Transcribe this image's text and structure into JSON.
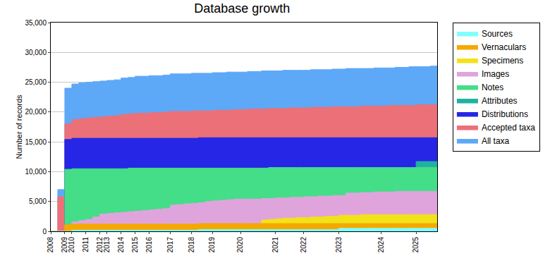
{
  "chart_data": {
    "type": "area",
    "title": "Database growth",
    "y_label": "Number of records",
    "stacked": false,
    "grid": true,
    "legend": "right",
    "ylim": [
      0,
      35000
    ],
    "yticks": [
      0,
      {
        "value": 5000,
        "label": "5,000"
      },
      {
        "value": 10000,
        "label": "10,000"
      },
      {
        "value": 15000,
        "label": "15,000"
      },
      {
        "value": 20000,
        "label": "20,000"
      },
      {
        "value": 25000,
        "label": "25,000"
      },
      {
        "value": 30000,
        "label": "30,000"
      },
      {
        "value": 35000,
        "label": "35,000"
      }
    ],
    "categories": [
      "2008",
      null,
      "2009",
      "2010",
      null,
      "2011",
      null,
      "2012",
      "2013",
      null,
      "2014",
      null,
      "2015",
      null,
      "2016",
      null,
      null,
      "2017",
      null,
      null,
      "2018",
      null,
      null,
      "2019",
      null,
      null,
      null,
      "2020",
      null,
      null,
      null,
      null,
      "2021",
      null,
      null,
      null,
      "2022",
      null,
      null,
      null,
      null,
      "2023",
      null,
      null,
      null,
      null,
      null,
      "2024",
      null,
      null,
      null,
      null,
      "2025",
      null,
      null,
      null
    ],
    "series": [
      {
        "name": "Sources",
        "color": "#80ffff",
        "values": [
          0,
          0,
          0,
          200,
          200,
          200,
          200,
          200,
          200,
          200,
          200,
          200,
          200,
          200,
          200,
          200,
          200,
          200,
          200,
          200,
          200,
          300,
          300,
          300,
          300,
          300,
          300,
          300,
          300,
          300,
          300,
          300,
          300,
          300,
          300,
          300,
          300,
          300,
          300,
          300,
          300,
          500,
          500,
          500,
          500,
          500,
          500,
          500,
          500,
          500,
          500,
          500,
          500,
          500,
          500,
          500
        ]
      },
      {
        "name": "Vernaculars",
        "color": "#f5a800",
        "values": [
          0,
          0,
          1100,
          1200,
          1200,
          1200,
          1200,
          1200,
          1200,
          1200,
          1200,
          1200,
          1200,
          1200,
          1200,
          1200,
          1200,
          1200,
          1200,
          1200,
          1200,
          1300,
          1300,
          1300,
          1300,
          1300,
          1300,
          1300,
          1300,
          1300,
          1300,
          1300,
          1300,
          1300,
          1300,
          1300,
          1300,
          1300,
          1300,
          1300,
          1300,
          1300,
          1300,
          1300,
          1300,
          1300,
          1300,
          1300,
          1300,
          1300,
          1300,
          1300,
          1300,
          1300,
          1300,
          1300
        ]
      },
      {
        "name": "Specimens",
        "color": "#f2e21a",
        "values": [
          0,
          0,
          0,
          0,
          0,
          0,
          0,
          0,
          0,
          0,
          0,
          0,
          0,
          0,
          0,
          0,
          0,
          0,
          0,
          0,
          0,
          0,
          0,
          0,
          0,
          0,
          0,
          0,
          0,
          0,
          1900,
          2000,
          2100,
          2200,
          2200,
          2300,
          2300,
          2400,
          2400,
          2500,
          2500,
          2700,
          2700,
          2700,
          2800,
          2800,
          2800,
          2800,
          2800,
          2800,
          2800,
          2800,
          2800,
          2800,
          2800,
          2800
        ]
      },
      {
        "name": "Images",
        "color": "#e0a4dc",
        "values": [
          0,
          0,
          1000,
          1600,
          1800,
          2000,
          2400,
          2900,
          3000,
          3100,
          3200,
          3300,
          3400,
          3500,
          3600,
          3700,
          3800,
          4400,
          4500,
          4600,
          4700,
          4800,
          5000,
          5100,
          5200,
          5300,
          5400,
          5400,
          5400,
          5400,
          5500,
          5500,
          5600,
          5600,
          5700,
          5700,
          5800,
          5800,
          5900,
          5900,
          6000,
          6000,
          6400,
          6400,
          6500,
          6500,
          6600,
          6600,
          6600,
          6700,
          6700,
          6700,
          6700,
          6700,
          6700,
          6700
        ]
      },
      {
        "name": "Notes",
        "color": "#44dd88",
        "values": [
          0,
          0,
          10400,
          10500,
          10500,
          10500,
          10500,
          10500,
          10500,
          10500,
          10500,
          10600,
          10600,
          10600,
          10600,
          10600,
          10600,
          10600,
          10600,
          10600,
          10600,
          10600,
          10600,
          10600,
          10600,
          10600,
          10600,
          10600,
          10600,
          10600,
          10600,
          10700,
          10700,
          10700,
          10700,
          10700,
          10700,
          10700,
          10700,
          10700,
          10700,
          10700,
          10700,
          10700,
          10700,
          10700,
          10700,
          10700,
          10700,
          10700,
          10700,
          10700,
          10700,
          10700,
          10700,
          10700
        ]
      },
      {
        "name": "Attributes",
        "color": "#20b2a0",
        "values": [
          0,
          0,
          0,
          0,
          0,
          0,
          0,
          0,
          0,
          0,
          0,
          0,
          0,
          0,
          0,
          0,
          0,
          0,
          0,
          0,
          0,
          0,
          0,
          0,
          0,
          0,
          0,
          0,
          0,
          0,
          0,
          0,
          0,
          0,
          0,
          0,
          0,
          0,
          0,
          0,
          0,
          0,
          0,
          0,
          0,
          0,
          0,
          0,
          0,
          0,
          0,
          0,
          11700,
          11700,
          11700,
          11700
        ]
      },
      {
        "name": "Distributions",
        "color": "#2626e6",
        "values": [
          0,
          0,
          15400,
          15600,
          15600,
          15600,
          15600,
          15600,
          15600,
          15600,
          15600,
          15600,
          15600,
          15600,
          15600,
          15600,
          15600,
          15600,
          15600,
          15600,
          15600,
          15700,
          15700,
          15700,
          15700,
          15700,
          15700,
          15700,
          15700,
          15700,
          15700,
          15700,
          15700,
          15700,
          15700,
          15700,
          15700,
          15700,
          15700,
          15700,
          15700,
          15700,
          15700,
          15700,
          15700,
          15700,
          15700,
          15700,
          15700,
          15700,
          15700,
          15700,
          15700,
          15700,
          15700,
          15700
        ]
      },
      {
        "name": "Accepted taxa",
        "color": "#ec7078",
        "values": [
          0,
          5800,
          18000,
          18700,
          18900,
          19000,
          19100,
          19200,
          19300,
          19400,
          19600,
          19700,
          19800,
          19800,
          19900,
          19900,
          20000,
          20100,
          20100,
          20100,
          20200,
          20200,
          20200,
          20300,
          20300,
          20300,
          20400,
          20400,
          20500,
          20500,
          20500,
          20600,
          20600,
          20600,
          20700,
          20700,
          20700,
          20800,
          20800,
          20800,
          20900,
          20900,
          20900,
          20900,
          21000,
          21000,
          21000,
          21000,
          21100,
          21100,
          21100,
          21100,
          21200,
          21200,
          21200,
          21200
        ]
      },
      {
        "name": "All taxa",
        "color": "#5ea8f8",
        "values": [
          0,
          7000,
          24000,
          24700,
          24900,
          25000,
          25100,
          25200,
          25300,
          25400,
          25700,
          25800,
          26000,
          26000,
          26100,
          26100,
          26200,
          26400,
          26400,
          26400,
          26500,
          26500,
          26500,
          26600,
          26600,
          26700,
          26700,
          26700,
          26800,
          26800,
          26900,
          26900,
          26900,
          27000,
          27000,
          27000,
          27000,
          27100,
          27100,
          27100,
          27200,
          27200,
          27300,
          27300,
          27300,
          27300,
          27400,
          27400,
          27400,
          27500,
          27500,
          27600,
          27600,
          27600,
          27700,
          27700
        ]
      }
    ]
  }
}
